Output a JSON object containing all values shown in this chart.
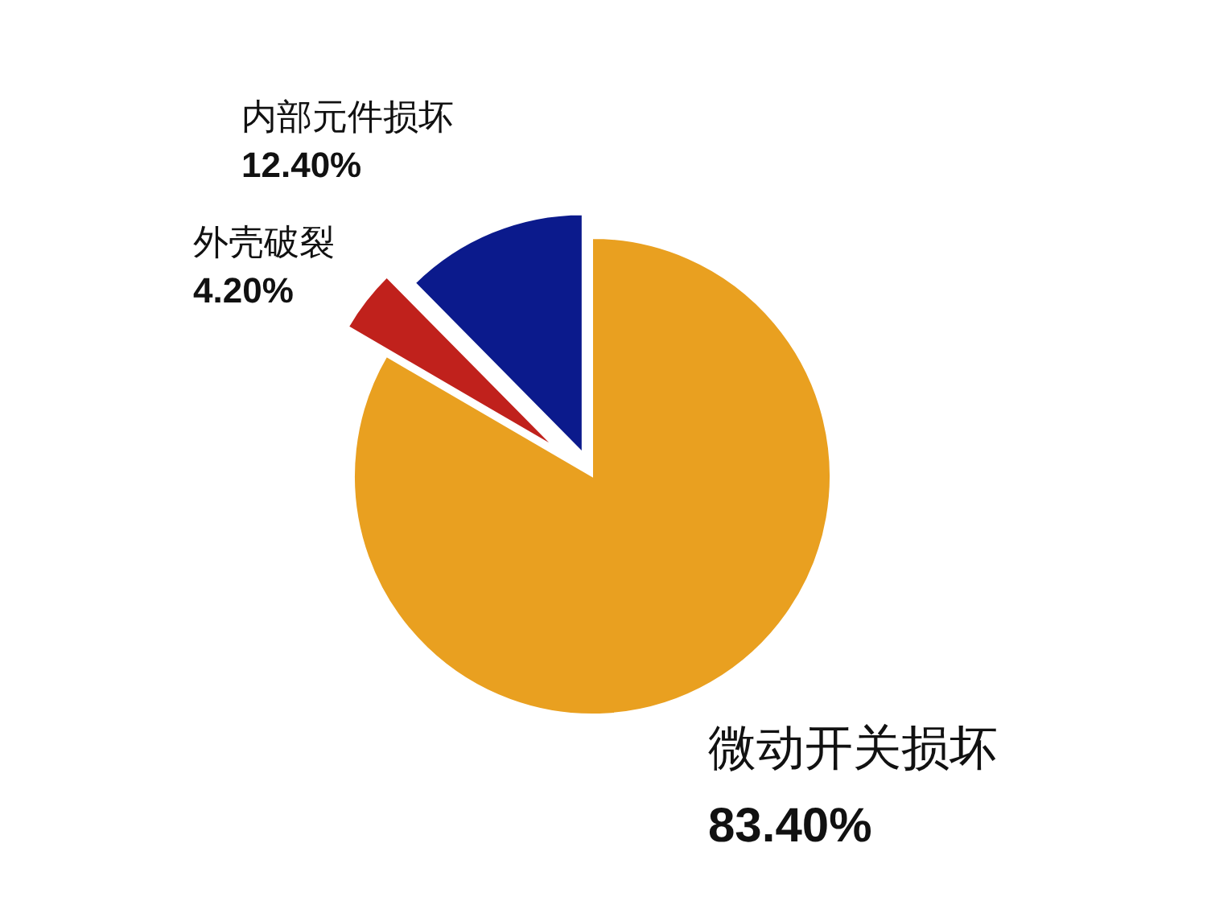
{
  "chart_data": {
    "type": "pie",
    "categories": [
      "微动开关损坏",
      "外壳破裂",
      "内部元件损坏"
    ],
    "values": [
      83.4,
      4.2,
      12.4
    ],
    "value_labels": [
      "83.40%",
      "4.20%",
      "12.40%"
    ],
    "colors": [
      "#e9a020",
      "#c0211c",
      "#0b1a8c"
    ]
  }
}
